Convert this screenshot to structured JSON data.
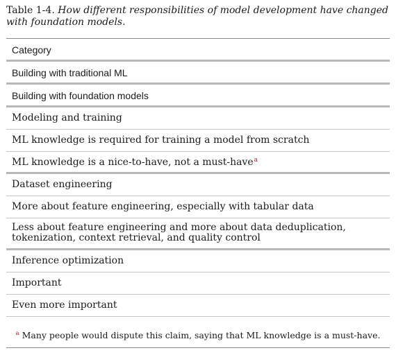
{
  "caption": {
    "label": "Table 1-4.",
    "text": "How different responsibilities of model development have changed with foundation models."
  },
  "table": {
    "header": "Category",
    "columns": [
      "Building with traditional ML",
      "Building with foundation models"
    ],
    "rows": [
      {
        "category": "Modeling and training",
        "traditional": "ML knowledge is required for training a model from scratch",
        "foundation": "ML knowledge is a nice-to-have, not a must-have",
        "foundation_footnote_mark": "a"
      },
      {
        "category": "Dataset engineering",
        "traditional": "More about feature engineering, especially with tabular data",
        "foundation": "Less about feature engineering and more about data deduplication, tokenization, context retrieval, and quality control"
      },
      {
        "category": "Inference optimization",
        "traditional": "Important",
        "foundation": "Even more important"
      }
    ]
  },
  "footnote": {
    "mark": "a",
    "text": "Many people would dispute this claim, saying that ML knowledge is a must-have."
  }
}
